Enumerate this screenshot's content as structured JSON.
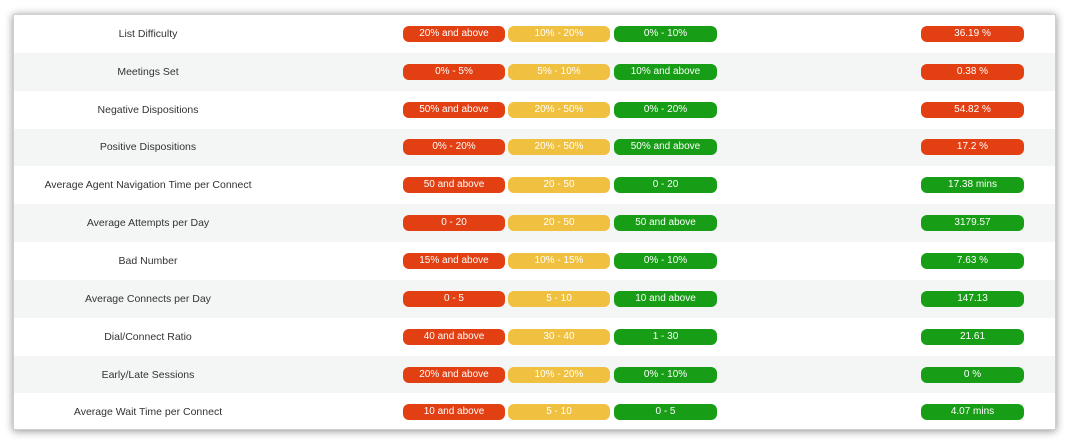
{
  "colors": {
    "red": "#e23f13",
    "yellow": "#f0c040",
    "green": "#179e16"
  },
  "metrics": [
    {
      "name": "List Difficulty",
      "red": "20% and above",
      "yellow": "10% - 20%",
      "green": "0% - 10%",
      "value": "36.19 %",
      "status": "red"
    },
    {
      "name": "Meetings Set",
      "red": "0% - 5%",
      "yellow": "5% - 10%",
      "green": "10% and above",
      "value": "0.38 %",
      "status": "red"
    },
    {
      "name": "Negative Dispositions",
      "red": "50% and above",
      "yellow": "20% - 50%",
      "green": "0% - 20%",
      "value": "54.82 %",
      "status": "red"
    },
    {
      "name": "Positive Dispositions",
      "red": "0% - 20%",
      "yellow": "20% - 50%",
      "green": "50% and above",
      "value": "17.2 %",
      "status": "red"
    },
    {
      "name": "Average Agent Navigation Time per Connect",
      "red": "50 and above",
      "yellow": "20 - 50",
      "green": "0 - 20",
      "value": "17.38 mins",
      "status": "green"
    },
    {
      "name": "Average Attempts per Day",
      "red": "0 - 20",
      "yellow": "20 - 50",
      "green": "50 and above",
      "value": "3179.57",
      "status": "green"
    },
    {
      "name": "Bad Number",
      "red": "15% and above",
      "yellow": "10% - 15%",
      "green": "0% - 10%",
      "value": "7.63 %",
      "status": "green"
    },
    {
      "name": "Average Connects per Day",
      "red": "0 - 5",
      "yellow": "5 - 10",
      "green": "10 and above",
      "value": "147.13",
      "status": "green"
    },
    {
      "name": "Dial/Connect Ratio",
      "red": "40 and above",
      "yellow": "30 - 40",
      "green": "1 - 30",
      "value": "21.61",
      "status": "green"
    },
    {
      "name": "Early/Late Sessions",
      "red": "20% and above",
      "yellow": "10% - 20%",
      "green": "0% - 10%",
      "value": "0 %",
      "status": "green"
    },
    {
      "name": "Average Wait Time per Connect",
      "red": "10 and above",
      "yellow": "5 - 10",
      "green": "0 - 5",
      "value": "4.07 mins",
      "status": "green"
    }
  ]
}
